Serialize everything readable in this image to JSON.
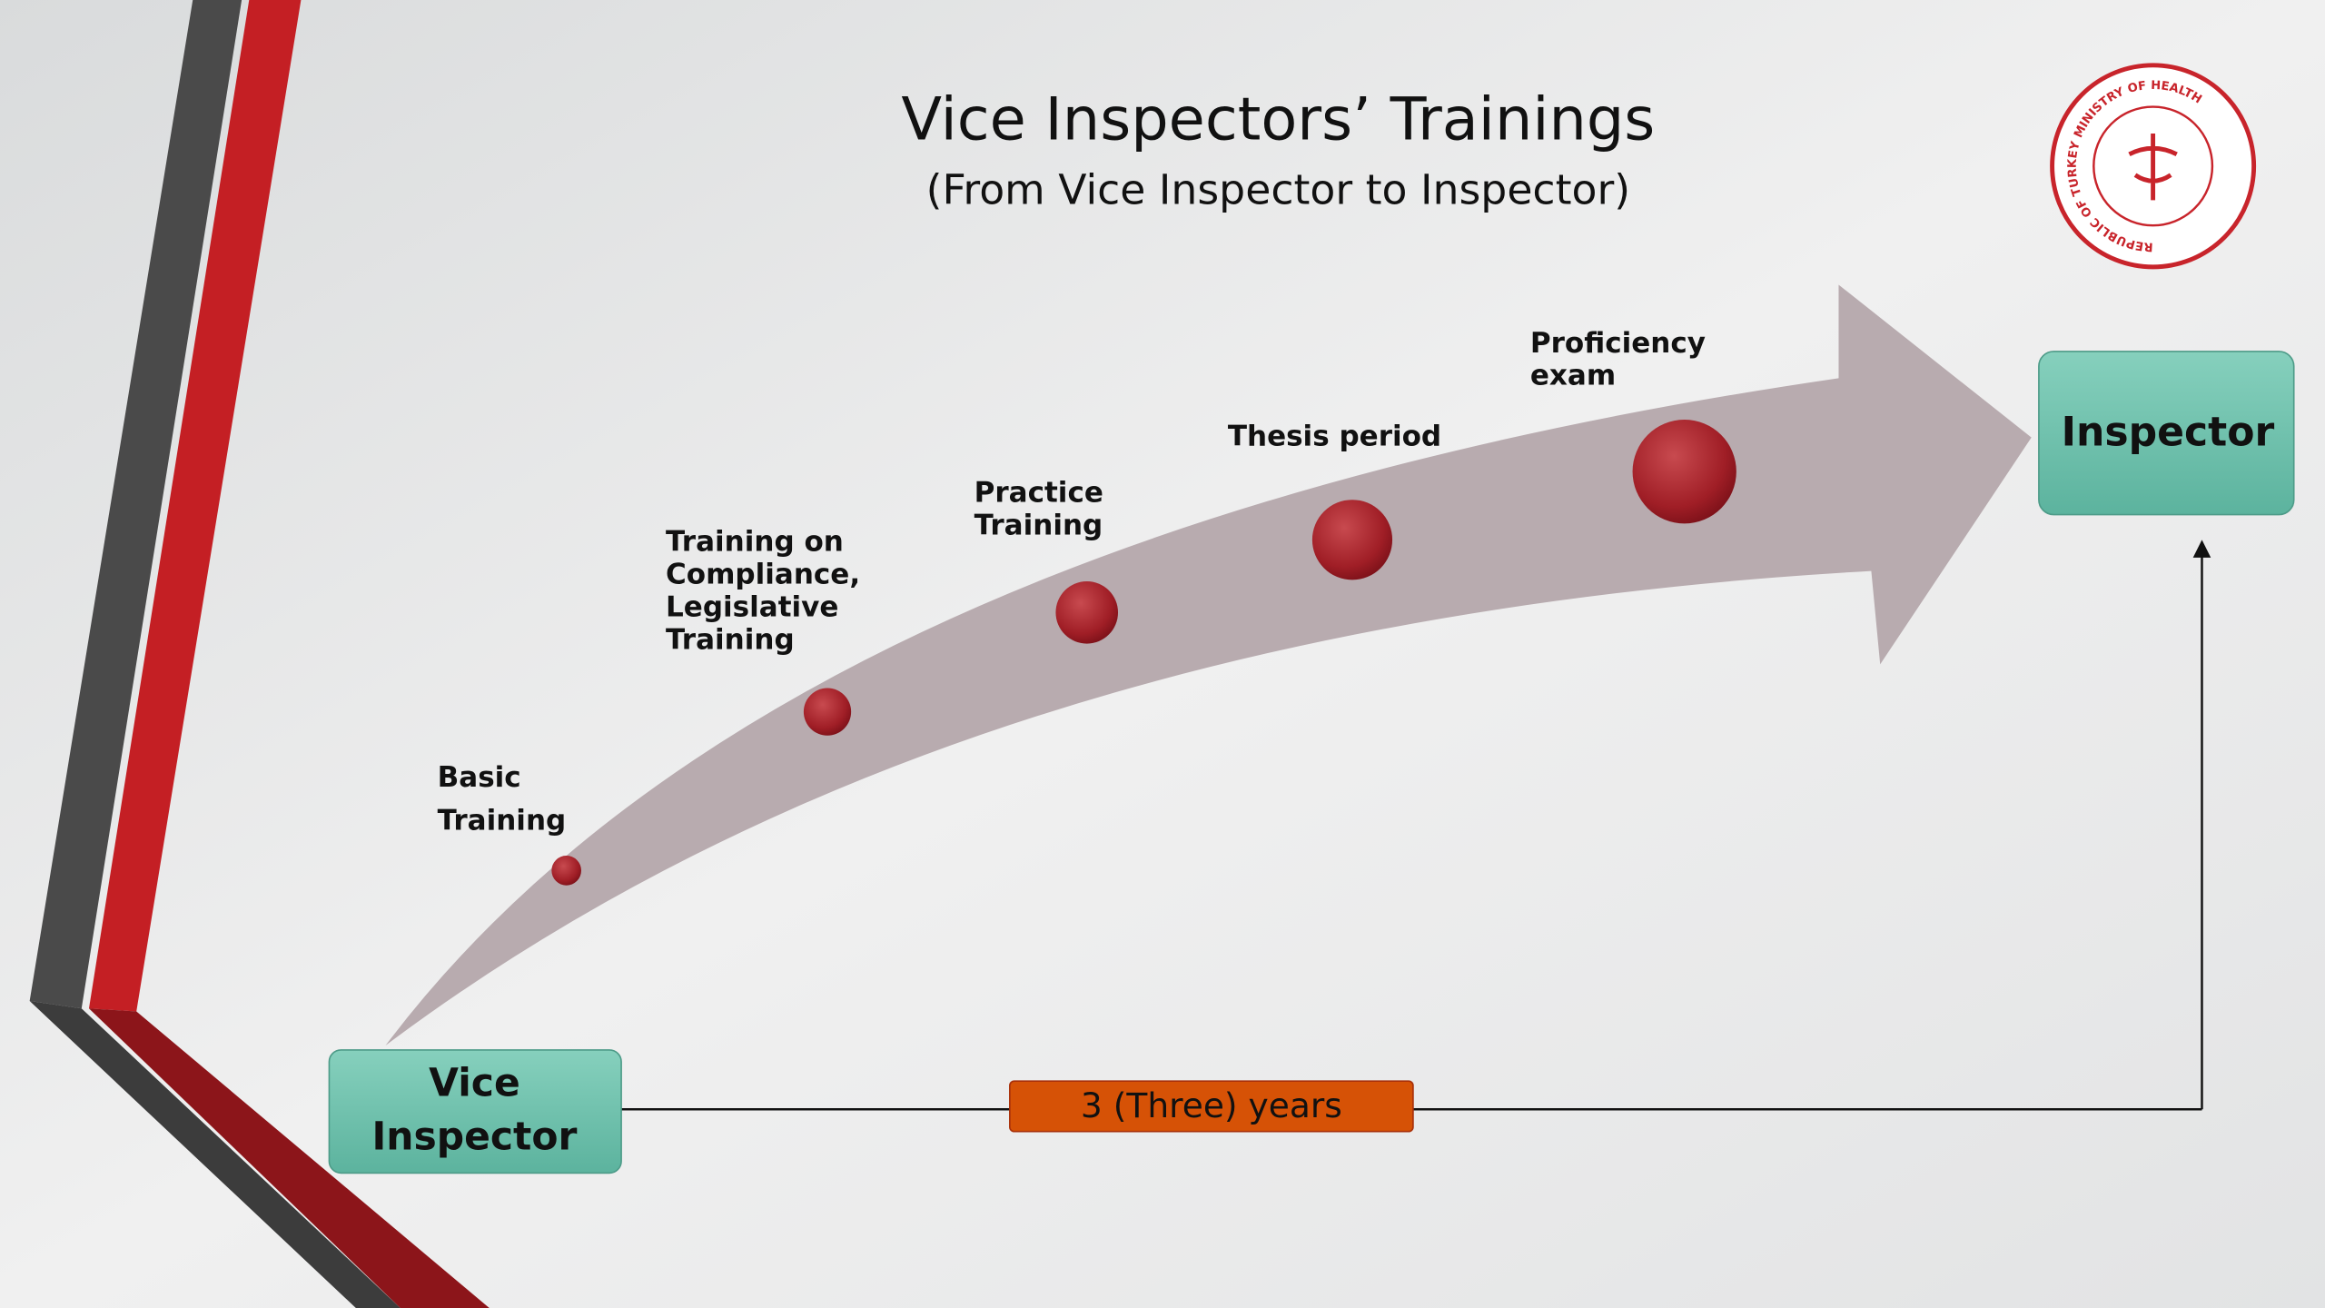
{
  "header": {
    "title": "Vice Inspectors’ Trainings",
    "subtitle": "(From Vice Inspector to Inspector)"
  },
  "logo": {
    "text": "REPUBLIC OF TURKEY MINISTRY OF HEALTH"
  },
  "stages": [
    {
      "lines": [
        "Basic",
        "Training"
      ]
    },
    {
      "lines": [
        "Training on",
        "Compliance,",
        "Legislative",
        "Training"
      ]
    },
    {
      "lines": [
        "Practice",
        "Training"
      ]
    },
    {
      "lines": [
        "Thesis period"
      ]
    },
    {
      "lines": [
        "Proficiency",
        "exam"
      ]
    }
  ],
  "start": {
    "lines": [
      "Vice",
      "Inspector"
    ]
  },
  "end": {
    "label": "Inspector"
  },
  "duration": {
    "label": "3 (Three) years"
  }
}
